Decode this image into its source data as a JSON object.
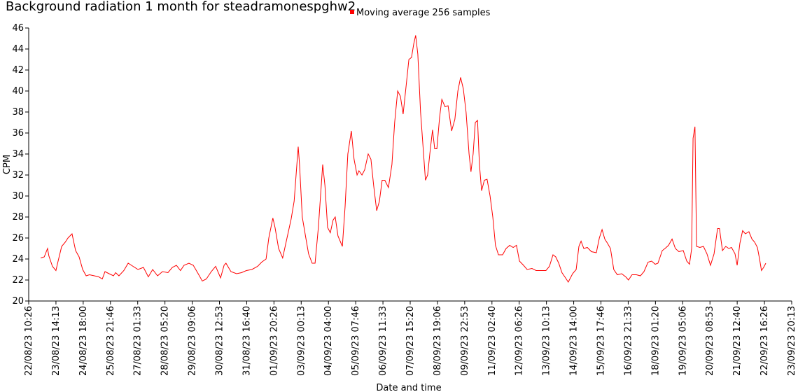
{
  "chart_data": {
    "type": "line",
    "title": "Background radiation 1 month for steadramonespghw2",
    "xlabel": "Date and time",
    "ylabel": "CPM",
    "legend": "top",
    "grid": false,
    "ylim": [
      20,
      46
    ],
    "yticks": [
      20,
      22,
      24,
      26,
      28,
      30,
      32,
      34,
      36,
      38,
      40,
      42,
      44,
      46
    ],
    "xlim": [
      0,
      28
    ],
    "xticks": [
      {
        "value": 0,
        "label": "22/08/23 10:26"
      },
      {
        "value": 1,
        "label": "23/08/23 14:13"
      },
      {
        "value": 2,
        "label": "24/08/23 18:00"
      },
      {
        "value": 3,
        "label": "25/08/23 21:46"
      },
      {
        "value": 4,
        "label": "27/08/23 01:33"
      },
      {
        "value": 5,
        "label": "28/08/23 05:20"
      },
      {
        "value": 6,
        "label": "29/08/23 09:06"
      },
      {
        "value": 7,
        "label": "30/08/23 12:53"
      },
      {
        "value": 8,
        "label": "31/08/23 16:40"
      },
      {
        "value": 9,
        "label": "01/09/23 20:26"
      },
      {
        "value": 10,
        "label": "03/09/23 00:13"
      },
      {
        "value": 11,
        "label": "04/09/23 04:00"
      },
      {
        "value": 12,
        "label": "05/09/23 07:46"
      },
      {
        "value": 13,
        "label": "06/09/23 11:33"
      },
      {
        "value": 14,
        "label": "07/09/23 15:20"
      },
      {
        "value": 15,
        "label": "08/09/23 19:06"
      },
      {
        "value": 16,
        "label": "09/09/23 22:53"
      },
      {
        "value": 17,
        "label": "11/09/23 02:40"
      },
      {
        "value": 18,
        "label": "12/09/23 06:26"
      },
      {
        "value": 19,
        "label": "13/09/23 10:13"
      },
      {
        "value": 20,
        "label": "14/09/23 14:00"
      },
      {
        "value": 21,
        "label": "15/09/23 17:46"
      },
      {
        "value": 22,
        "label": "16/09/23 21:33"
      },
      {
        "value": 23,
        "label": "18/09/23 01:20"
      },
      {
        "value": 24,
        "label": "19/09/23 05:06"
      },
      {
        "value": 25,
        "label": "20/09/23 08:53"
      },
      {
        "value": 26,
        "label": "21/09/23 12:40"
      },
      {
        "value": 27,
        "label": "22/09/23 16:26"
      },
      {
        "value": 28,
        "label": "23/09/23 20:13"
      }
    ],
    "x": [
      0.44,
      0.57,
      0.69,
      0.74,
      0.87,
      1.0,
      1.08,
      1.21,
      1.34,
      1.44,
      1.59,
      1.72,
      1.85,
      1.98,
      2.11,
      2.23,
      2.41,
      2.57,
      2.7,
      2.8,
      2.95,
      3.11,
      3.19,
      3.31,
      3.49,
      3.65,
      3.83,
      4.01,
      4.21,
      4.39,
      4.55,
      4.73,
      4.91,
      5.11,
      5.27,
      5.42,
      5.57,
      5.7,
      5.88,
      6.04,
      6.22,
      6.37,
      6.52,
      6.7,
      6.86,
      7.04,
      7.17,
      7.24,
      7.42,
      7.63,
      7.81,
      7.99,
      8.19,
      8.4,
      8.55,
      8.71,
      8.81,
      8.96,
      9.04,
      9.17,
      9.32,
      9.48,
      9.63,
      9.74,
      9.84,
      9.89,
      9.94,
      10.04,
      10.17,
      10.27,
      10.4,
      10.51,
      10.63,
      10.71,
      10.79,
      10.87,
      10.97,
      11.07,
      11.17,
      11.25,
      11.35,
      11.51,
      11.61,
      11.71,
      11.84,
      11.94,
      12.05,
      12.12,
      12.23,
      12.33,
      12.46,
      12.56,
      12.66,
      12.77,
      12.87,
      12.97,
      13.07,
      13.2,
      13.33,
      13.43,
      13.54,
      13.64,
      13.74,
      13.85,
      13.95,
      14.05,
      14.13,
      14.2,
      14.28,
      14.38,
      14.49,
      14.56,
      14.64,
      14.72,
      14.82,
      14.9,
      14.98,
      15.08,
      15.16,
      15.28,
      15.39,
      15.52,
      15.64,
      15.75,
      15.85,
      15.95,
      16.05,
      16.16,
      16.23,
      16.31,
      16.39,
      16.47,
      16.54,
      16.62,
      16.72,
      16.82,
      16.93,
      17.03,
      17.13,
      17.24,
      17.39,
      17.52,
      17.65,
      17.78,
      17.9,
      18.01,
      18.16,
      18.29,
      18.47,
      18.62,
      18.8,
      18.98,
      19.11,
      19.24,
      19.34,
      19.45,
      19.57,
      19.7,
      19.8,
      19.96,
      20.09,
      20.19,
      20.27,
      20.37,
      20.5,
      20.65,
      20.83,
      20.94,
      21.04,
      21.14,
      21.24,
      21.35,
      21.47,
      21.6,
      21.76,
      21.91,
      22.01,
      22.14,
      22.3,
      22.45,
      22.58,
      22.73,
      22.86,
      22.99,
      23.09,
      23.25,
      23.35,
      23.48,
      23.61,
      23.73,
      23.86,
      24.02,
      24.15,
      24.25,
      24.33,
      24.38,
      24.45,
      24.51,
      24.63,
      24.76,
      24.89,
      25.02,
      25.15,
      25.28,
      25.35,
      25.46,
      25.58,
      25.69,
      25.79,
      25.92,
      26.0,
      26.1,
      26.2,
      26.3,
      26.43,
      26.54,
      26.64,
      26.74,
      26.82,
      26.89,
      26.97,
      27.05
    ],
    "series": [
      {
        "name": "Moving average 256 samples",
        "color": "#ff0000",
        "values": [
          24.1,
          24.2,
          25.0,
          24.3,
          23.3,
          22.9,
          23.8,
          25.2,
          25.6,
          26.0,
          26.4,
          24.8,
          24.2,
          23.0,
          22.4,
          22.5,
          22.4,
          22.3,
          22.1,
          22.8,
          22.6,
          22.4,
          22.7,
          22.4,
          22.9,
          23.6,
          23.3,
          23.0,
          23.2,
          22.3,
          23.0,
          22.4,
          22.8,
          22.7,
          23.2,
          23.4,
          22.9,
          23.4,
          23.6,
          23.4,
          22.6,
          21.9,
          22.1,
          22.8,
          23.3,
          22.2,
          23.4,
          23.6,
          22.8,
          22.6,
          22.7,
          22.9,
          23.0,
          23.3,
          23.7,
          24.0,
          26.0,
          27.9,
          27.0,
          25.0,
          24.1,
          26.0,
          27.8,
          29.5,
          33.0,
          34.7,
          33.0,
          28.0,
          26.0,
          24.5,
          23.6,
          23.6,
          27.0,
          30.0,
          33.0,
          31.0,
          27.0,
          26.5,
          27.7,
          28.0,
          26.2,
          25.2,
          29.0,
          34.0,
          36.2,
          33.5,
          32.0,
          32.4,
          32.0,
          32.5,
          34.0,
          33.5,
          31.0,
          28.6,
          29.5,
          31.5,
          31.5,
          30.8,
          33.0,
          37.0,
          40.0,
          39.5,
          37.8,
          40.5,
          43.0,
          43.2,
          44.5,
          45.3,
          43.5,
          38.0,
          34.0,
          31.5,
          32.0,
          34.0,
          36.3,
          34.5,
          34.5,
          37.5,
          39.2,
          38.5,
          38.6,
          36.2,
          37.3,
          40.0,
          41.3,
          40.2,
          38.0,
          34.0,
          32.3,
          34.0,
          37.0,
          37.2,
          33.0,
          30.5,
          31.5,
          31.6,
          30.0,
          28.0,
          25.3,
          24.4,
          24.4,
          25.0,
          25.3,
          25.1,
          25.3,
          23.8,
          23.4,
          23.0,
          23.1,
          22.9,
          22.9,
          22.9,
          23.3,
          24.4,
          24.2,
          23.6,
          22.7,
          22.2,
          21.8,
          22.6,
          23.0,
          25.2,
          25.7,
          25.0,
          25.1,
          24.7,
          24.6,
          26.0,
          26.8,
          25.9,
          25.5,
          25.0,
          23.0,
          22.5,
          22.6,
          22.3,
          22.0,
          22.5,
          22.5,
          22.4,
          22.8,
          23.7,
          23.8,
          23.5,
          23.6,
          24.8,
          25.0,
          25.3,
          25.9,
          25.0,
          24.7,
          24.8,
          23.8,
          23.5,
          25.0,
          35.5,
          36.6,
          25.2,
          25.1,
          25.2,
          24.5,
          23.4,
          24.5,
          26.9,
          26.9,
          24.8,
          25.2,
          25.0,
          25.1,
          24.5,
          23.4,
          25.5,
          26.7,
          26.4,
          26.6,
          25.9,
          25.6,
          25.1,
          24.0,
          22.9,
          23.2,
          23.6
        ]
      }
    ]
  }
}
